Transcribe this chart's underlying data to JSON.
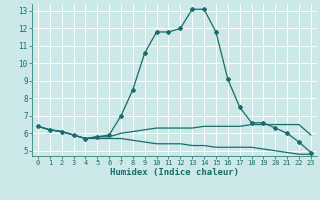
{
  "xlabel": "Humidex (Indice chaleur)",
  "bg_color": "#cce8e8",
  "grid_color": "#ffffff",
  "line_color": "#1a6b6b",
  "xlim": [
    -0.5,
    23.5
  ],
  "ylim": [
    4.7,
    13.4
  ],
  "xticks": [
    0,
    1,
    2,
    3,
    4,
    5,
    6,
    7,
    8,
    9,
    10,
    11,
    12,
    13,
    14,
    15,
    16,
    17,
    18,
    19,
    20,
    21,
    22,
    23
  ],
  "yticks": [
    5,
    6,
    7,
    8,
    9,
    10,
    11,
    12,
    13
  ],
  "curve1_x": [
    0,
    1,
    2,
    3,
    4,
    5,
    6,
    7,
    8,
    9,
    10,
    11,
    12,
    13,
    14,
    15,
    16,
    17,
    18,
    19,
    20,
    21,
    22,
    23
  ],
  "curve1_y": [
    6.4,
    6.2,
    6.1,
    5.9,
    5.7,
    5.8,
    5.9,
    7.0,
    8.5,
    10.6,
    11.8,
    11.8,
    12.0,
    13.1,
    13.1,
    11.8,
    9.1,
    7.5,
    6.6,
    6.6,
    6.3,
    6.0,
    5.5,
    4.9
  ],
  "curve2_x": [
    0,
    1,
    2,
    3,
    4,
    5,
    6,
    7,
    8,
    9,
    10,
    11,
    12,
    13,
    14,
    15,
    16,
    17,
    18,
    19,
    20,
    21,
    22,
    23
  ],
  "curve2_y": [
    6.4,
    6.2,
    6.1,
    5.9,
    5.7,
    5.8,
    5.8,
    6.0,
    6.1,
    6.2,
    6.3,
    6.3,
    6.3,
    6.3,
    6.4,
    6.4,
    6.4,
    6.4,
    6.5,
    6.5,
    6.5,
    6.5,
    6.5,
    5.9
  ],
  "curve3_x": [
    0,
    1,
    2,
    3,
    4,
    5,
    6,
    7,
    8,
    9,
    10,
    11,
    12,
    13,
    14,
    15,
    16,
    17,
    18,
    19,
    20,
    21,
    22,
    23
  ],
  "curve3_y": [
    6.4,
    6.2,
    6.1,
    5.9,
    5.7,
    5.7,
    5.7,
    5.7,
    5.6,
    5.5,
    5.4,
    5.4,
    5.4,
    5.3,
    5.3,
    5.2,
    5.2,
    5.2,
    5.2,
    5.1,
    5.0,
    4.9,
    4.8,
    4.8
  ]
}
